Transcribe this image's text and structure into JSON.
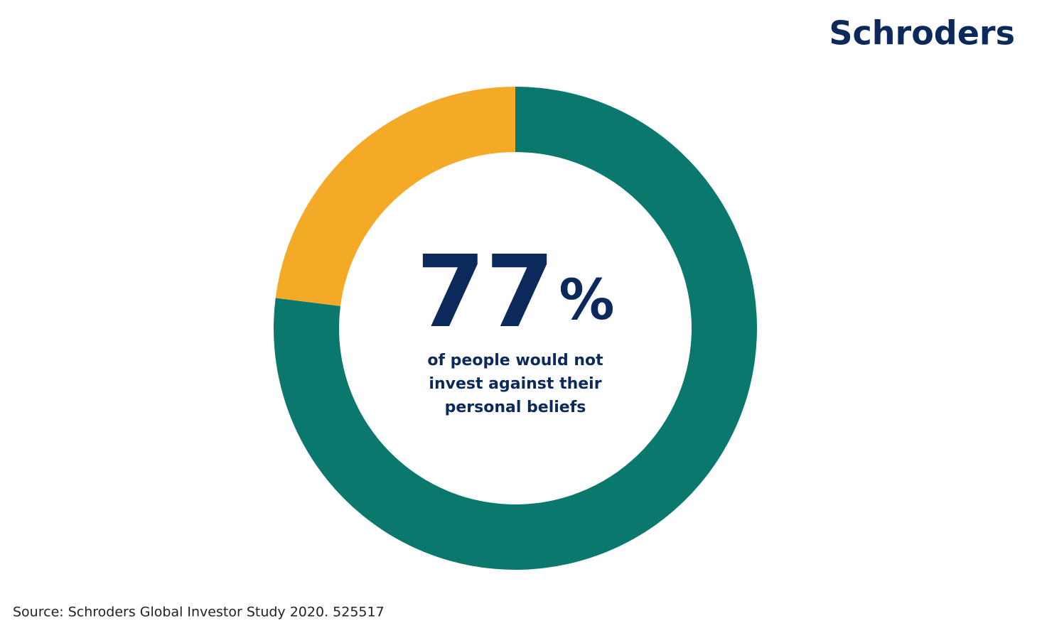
{
  "logo": "Schroders",
  "chart_data": {
    "type": "donut",
    "values": [
      77,
      23
    ],
    "value_labels": [
      "77%",
      null
    ],
    "colors": [
      "#0a786d",
      "#f4a927"
    ],
    "annotation_lines": [
      "of people would not",
      "invest against their",
      "personal beliefs"
    ]
  },
  "source": "Source: Schroders Global Investor Study 2020. 525517"
}
